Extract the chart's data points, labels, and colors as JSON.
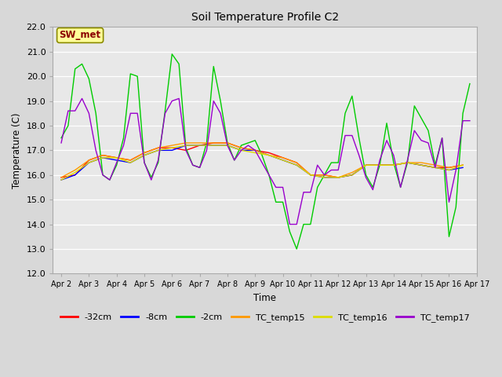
{
  "title": "Soil Temperature Profile C2",
  "xlabel": "Time",
  "ylabel": "Temperature (C)",
  "ylim": [
    12.0,
    22.0
  ],
  "yticks": [
    12.0,
    13.0,
    14.0,
    15.0,
    16.0,
    17.0,
    18.0,
    19.0,
    20.0,
    21.0,
    22.0
  ],
  "x_labels": [
    "Apr 2",
    "Apr 3",
    "Apr 4",
    "Apr 5",
    "Apr 6",
    "Apr 7",
    "Apr 8",
    "Apr 9",
    "Apr 10",
    "Apr 11",
    "Apr 12",
    "Apr 13",
    "Apr 14",
    "Apr 15",
    "Apr 16",
    "Apr 17"
  ],
  "plot_bg_color": "#e8e8e8",
  "grid_color": "#ffffff",
  "annotation_text": "SW_met",
  "annotation_bg": "#ffff99",
  "annotation_border": "#8b8b00",
  "annotation_text_color": "#8b0000",
  "series_order": [
    "-32cm",
    "-8cm",
    "-2cm",
    "TC_temp15",
    "TC_temp16",
    "TC_temp17"
  ],
  "series": {
    "-32cm": {
      "color": "#ff0000",
      "x": [
        0,
        0.5,
        1,
        1.5,
        2,
        2.5,
        3,
        3.5,
        4,
        4.5,
        5,
        5.5,
        6,
        6.5,
        7,
        7.5,
        8,
        8.5,
        9,
        9.5,
        10,
        10.5,
        11,
        11.5,
        12,
        12.5,
        13,
        13.5,
        14,
        14.5
      ],
      "y": [
        15.9,
        16.0,
        16.6,
        16.8,
        16.7,
        16.6,
        16.9,
        17.1,
        17.1,
        17.0,
        17.2,
        17.3,
        17.3,
        17.1,
        17.0,
        16.9,
        16.7,
        16.5,
        16.0,
        16.0,
        15.9,
        16.0,
        16.4,
        16.4,
        16.4,
        16.5,
        16.4,
        16.3,
        16.3,
        16.4
      ]
    },
    "-8cm": {
      "color": "#0000ff",
      "x": [
        0,
        0.5,
        1,
        1.5,
        2,
        2.5,
        3,
        3.5,
        4,
        4.5,
        5,
        5.5,
        6,
        6.5,
        7,
        7.5,
        8,
        8.5,
        9,
        9.5,
        10,
        10.5,
        11,
        11.5,
        12,
        12.5,
        13,
        13.5,
        14,
        14.5
      ],
      "y": [
        15.8,
        16.0,
        16.5,
        16.7,
        16.6,
        16.5,
        16.8,
        17.0,
        17.0,
        17.2,
        17.2,
        17.2,
        17.2,
        17.0,
        17.0,
        16.8,
        16.6,
        16.4,
        16.0,
        15.9,
        15.9,
        16.0,
        16.4,
        16.4,
        16.4,
        16.5,
        16.4,
        16.3,
        16.2,
        16.3
      ]
    },
    "-2cm": {
      "color": "#00cc00",
      "x": [
        0,
        0.25,
        0.5,
        0.75,
        1,
        1.25,
        1.5,
        1.75,
        2,
        2.25,
        2.5,
        2.75,
        3,
        3.25,
        3.5,
        3.75,
        4,
        4.25,
        4.5,
        4.75,
        5,
        5.25,
        5.5,
        5.75,
        6,
        6.25,
        6.5,
        6.75,
        7,
        7.25,
        7.5,
        7.75,
        8,
        8.25,
        8.5,
        8.75,
        9,
        9.25,
        9.5,
        9.75,
        10,
        10.25,
        10.5,
        10.75,
        11,
        11.25,
        11.5,
        11.75,
        12,
        12.25,
        12.5,
        12.75,
        13,
        13.25,
        13.5,
        13.75,
        14,
        14.25,
        14.5,
        14.75
      ],
      "y": [
        17.5,
        18.0,
        20.3,
        20.5,
        19.9,
        18.5,
        16.0,
        15.8,
        16.4,
        17.5,
        20.1,
        20.0,
        16.5,
        15.9,
        16.5,
        18.6,
        20.9,
        20.5,
        17.1,
        16.4,
        16.3,
        17.3,
        20.4,
        19.0,
        17.3,
        16.6,
        17.2,
        17.3,
        17.4,
        16.8,
        16.0,
        14.9,
        14.9,
        13.7,
        13.0,
        14.0,
        14.0,
        15.5,
        16.0,
        16.5,
        16.5,
        18.5,
        19.2,
        17.5,
        16.0,
        15.5,
        16.4,
        18.1,
        16.5,
        15.5,
        16.5,
        18.8,
        18.3,
        17.8,
        16.4,
        17.5,
        13.5,
        14.7,
        18.5,
        19.7
      ]
    },
    "TC_temp15": {
      "color": "#ff9900",
      "x": [
        0,
        0.5,
        1,
        1.5,
        2,
        2.5,
        3,
        3.5,
        4,
        4.5,
        5,
        5.5,
        6,
        6.5,
        7,
        7.5,
        8,
        8.5,
        9,
        9.5,
        10,
        10.5,
        11,
        11.5,
        12,
        12.5,
        13,
        13.5,
        14,
        14.5
      ],
      "y": [
        15.9,
        16.2,
        16.6,
        16.8,
        16.7,
        16.6,
        16.9,
        17.1,
        17.2,
        17.3,
        17.3,
        17.3,
        17.3,
        17.1,
        17.0,
        16.8,
        16.7,
        16.5,
        16.0,
        16.0,
        15.9,
        16.1,
        16.4,
        16.4,
        16.4,
        16.5,
        16.5,
        16.4,
        16.3,
        16.4
      ]
    },
    "TC_temp16": {
      "color": "#dddd00",
      "x": [
        0,
        0.5,
        1,
        1.5,
        2,
        2.5,
        3,
        3.5,
        4,
        4.5,
        5,
        5.5,
        6,
        6.5,
        7,
        7.5,
        8,
        8.5,
        9,
        9.5,
        10,
        10.5,
        11,
        11.5,
        12,
        12.5,
        13,
        13.5,
        14,
        14.5
      ],
      "y": [
        15.8,
        16.1,
        16.5,
        16.7,
        16.7,
        16.5,
        16.8,
        17.0,
        17.1,
        17.2,
        17.2,
        17.2,
        17.2,
        17.0,
        16.9,
        16.8,
        16.6,
        16.4,
        16.0,
        15.9,
        15.9,
        16.0,
        16.4,
        16.4,
        16.4,
        16.5,
        16.4,
        16.3,
        16.2,
        16.4
      ]
    },
    "TC_temp17": {
      "color": "#9900cc",
      "x": [
        0,
        0.25,
        0.5,
        0.75,
        1,
        1.25,
        1.5,
        1.75,
        2,
        2.25,
        2.5,
        2.75,
        3,
        3.25,
        3.5,
        3.75,
        4,
        4.25,
        4.5,
        4.75,
        5,
        5.25,
        5.5,
        5.75,
        6,
        6.25,
        6.5,
        6.75,
        7,
        7.25,
        7.5,
        7.75,
        8,
        8.25,
        8.5,
        8.75,
        9,
        9.25,
        9.5,
        9.75,
        10,
        10.25,
        10.5,
        10.75,
        11,
        11.25,
        11.5,
        11.75,
        12,
        12.25,
        12.5,
        12.75,
        13,
        13.25,
        13.5,
        13.75,
        14,
        14.25,
        14.5,
        14.75
      ],
      "y": [
        17.3,
        18.6,
        18.6,
        19.1,
        18.5,
        17.0,
        16.0,
        15.8,
        16.5,
        17.2,
        18.5,
        18.5,
        16.5,
        15.8,
        16.6,
        18.5,
        19.0,
        19.1,
        17.0,
        16.4,
        16.3,
        17.0,
        19.0,
        18.5,
        17.2,
        16.6,
        17.0,
        17.2,
        17.0,
        16.5,
        16.0,
        15.5,
        15.5,
        14.0,
        14.0,
        15.3,
        15.3,
        16.4,
        16.0,
        16.2,
        16.2,
        17.6,
        17.6,
        16.8,
        15.9,
        15.4,
        16.6,
        17.4,
        16.8,
        15.5,
        16.6,
        17.8,
        17.4,
        17.3,
        16.3,
        17.5,
        14.9,
        16.2,
        18.2,
        18.2
      ]
    }
  },
  "legend_labels": [
    "-32cm",
    "-8cm",
    "-2cm",
    "TC_temp15",
    "TC_temp16",
    "TC_temp17"
  ],
  "legend_colors": [
    "#ff0000",
    "#0000ff",
    "#00cc00",
    "#ff9900",
    "#dddd00",
    "#9900cc"
  ]
}
